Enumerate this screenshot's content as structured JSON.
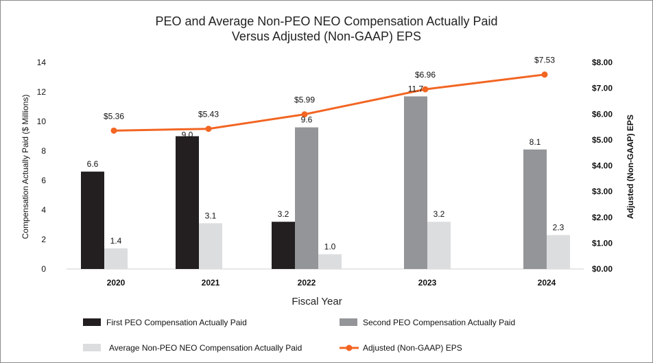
{
  "chart_data": {
    "type": "bar+line",
    "title_lines": [
      "PEO and Average Non-PEO NEO Compensation Actually Paid",
      "Versus Adjusted (Non-GAAP) EPS"
    ],
    "xlabel": "Fiscal Year",
    "ylabel_left": "Compensation Actually Paid ($ Millions)",
    "ylabel_right": "Adjusted (Non-GAAP) EPS",
    "categories": [
      "2020",
      "2021",
      "2022",
      "2023",
      "2024"
    ],
    "ylim_left": [
      0,
      14
    ],
    "yticks_left": [
      "0",
      "2",
      "4",
      "6",
      "8",
      "10",
      "12",
      "14"
    ],
    "ylim_right": [
      0,
      8
    ],
    "yticks_right": [
      "$0.00",
      "$1.00",
      "$2.00",
      "$3.00",
      "$4.00",
      "$5.00",
      "$6.00",
      "$7.00",
      "$8.00"
    ],
    "series": [
      {
        "name": "First PEO Compensation Actually Paid",
        "color": "#231f20",
        "values": [
          6.6,
          9.0,
          3.2,
          null,
          null
        ],
        "labels": [
          "6.6",
          "9.0",
          "3.2",
          "",
          ""
        ]
      },
      {
        "name": "Second PEO Compensation Actually Paid",
        "color": "#939598",
        "values": [
          null,
          null,
          9.6,
          11.7,
          8.1
        ],
        "labels": [
          "",
          "",
          "9.6",
          "11.7",
          "8.1"
        ]
      },
      {
        "name": "Average Non-PEO NEO Compensation Actually Paid",
        "color": "#dcdddf",
        "values": [
          1.4,
          3.1,
          1.0,
          3.2,
          2.3
        ],
        "labels": [
          "1.4",
          "3.1",
          "1.0",
          "3.2",
          "2.3"
        ]
      }
    ],
    "line": {
      "name": "Adjusted (Non-GAAP) EPS",
      "color": "#f26522",
      "values": [
        5.36,
        5.43,
        5.99,
        6.96,
        7.53
      ],
      "labels": [
        "$5.36",
        "$5.43",
        "$5.99",
        "$6.96",
        "$7.53"
      ]
    },
    "legend": [
      {
        "name": "First PEO Compensation Actually Paid",
        "marker": "bar",
        "color": "#231f20"
      },
      {
        "name": "Second PEO Compensation Actually Paid",
        "marker": "bar",
        "color": "#939598"
      },
      {
        "name": "Average Non-PEO NEO Compensation Actually Paid",
        "marker": "bar",
        "color": "#dcdddf"
      },
      {
        "name": "Adjusted (Non-GAAP) EPS",
        "marker": "line",
        "color": "#f26522"
      }
    ]
  }
}
